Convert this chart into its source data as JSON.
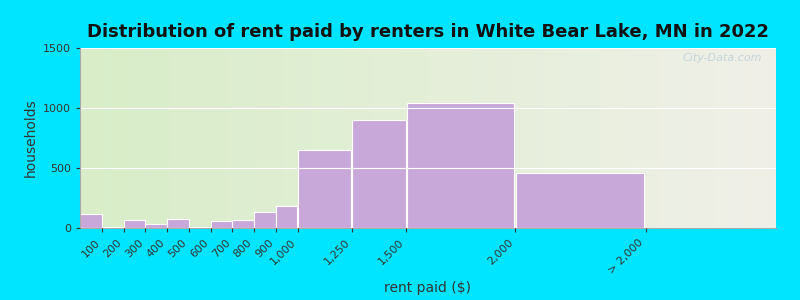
{
  "title": "Distribution of rent paid by renters in White Bear Lake, MN in 2022",
  "xlabel": "rent paid ($)",
  "ylabel": "households",
  "bar_left_edges": [
    0,
    100,
    200,
    300,
    400,
    500,
    600,
    700,
    800,
    900,
    1000,
    1250,
    1500,
    2000
  ],
  "bar_widths": [
    100,
    100,
    100,
    100,
    100,
    100,
    100,
    100,
    100,
    100,
    250,
    250,
    500,
    600
  ],
  "values": [
    120,
    10,
    65,
    30,
    75,
    10,
    60,
    65,
    130,
    185,
    650,
    900,
    1040,
    460
  ],
  "tick_positions": [
    100,
    200,
    300,
    400,
    500,
    600,
    700,
    800,
    900,
    1000,
    1250,
    1500,
    2000,
    2600
  ],
  "tick_labels": [
    "100",
    "200",
    "300",
    "400",
    "500",
    "600",
    "700",
    "800",
    "900",
    "1,000",
    "1,250",
    "1,500",
    "2,000",
    "> 2,000"
  ],
  "bar_color": "#c8a8d8",
  "bar_edge_color": "#ffffff",
  "ylim": [
    0,
    1500
  ],
  "yticks": [
    0,
    500,
    1000,
    1500
  ],
  "xlim": [
    0,
    3200
  ],
  "background_outer": "#00e5ff",
  "background_plot_left": "#d8edc8",
  "background_plot_right": "#f0f0e8",
  "title_fontsize": 13,
  "axis_label_fontsize": 10,
  "tick_fontsize": 8,
  "watermark_text": "City-Data.com"
}
